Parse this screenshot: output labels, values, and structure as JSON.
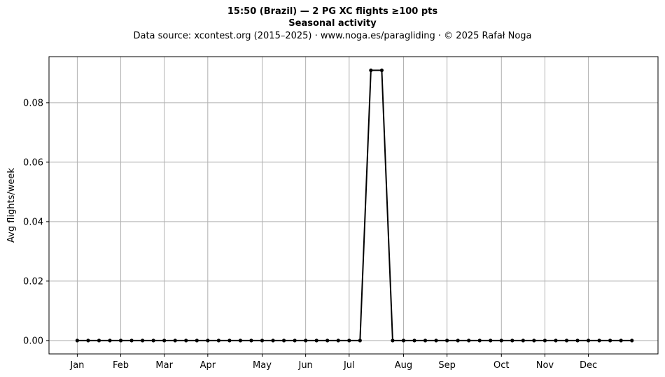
{
  "chart_data": {
    "type": "line",
    "title": "15:50 (Brazil)  —  2 PG XC flights ≥100 pts",
    "subtitle": "Seasonal activity",
    "source_line": "Data source: xcontest.org (2015–2025)  ·  www.noga.es/paragliding  ·  © 2025 Rafał Noga",
    "xlabel": "",
    "ylabel": "Avg flights/week",
    "ylim": [
      -0.0045,
      0.0955
    ],
    "xlim": [
      -2.6,
      53.4
    ],
    "grid": true,
    "line_color": "#000000",
    "grid_color": "#b0b0b0",
    "x_ticks": [
      {
        "label": "Jan",
        "pos": 0
      },
      {
        "label": "Feb",
        "pos": 4
      },
      {
        "label": "Mar",
        "pos": 8
      },
      {
        "label": "Apr",
        "pos": 12
      },
      {
        "label": "May",
        "pos": 17
      },
      {
        "label": "Jun",
        "pos": 21
      },
      {
        "label": "Jul",
        "pos": 25
      },
      {
        "label": "Aug",
        "pos": 30
      },
      {
        "label": "Sep",
        "pos": 34
      },
      {
        "label": "Oct",
        "pos": 39
      },
      {
        "label": "Nov",
        "pos": 43
      },
      {
        "label": "Dec",
        "pos": 47
      }
    ],
    "y_ticks": [
      {
        "label": "0.00",
        "value": 0.0
      },
      {
        "label": "0.02",
        "value": 0.02
      },
      {
        "label": "0.04",
        "value": 0.04
      },
      {
        "label": "0.06",
        "value": 0.06
      },
      {
        "label": "0.08",
        "value": 0.08
      }
    ],
    "series": [
      {
        "x": [
          0,
          1,
          2,
          3,
          4,
          5,
          6,
          7,
          8,
          9,
          10,
          11,
          12,
          13,
          14,
          15,
          16,
          17,
          18,
          19,
          20,
          21,
          22,
          23,
          24,
          25,
          26,
          27,
          28,
          29,
          30,
          31,
          32,
          33,
          34,
          35,
          36,
          37,
          38,
          39,
          40,
          41,
          42,
          43,
          44,
          45,
          46,
          47,
          48,
          49,
          50,
          51
        ],
        "values": [
          0,
          0,
          0,
          0,
          0,
          0,
          0,
          0,
          0,
          0,
          0,
          0,
          0,
          0,
          0,
          0,
          0,
          0,
          0,
          0,
          0,
          0,
          0,
          0,
          0,
          0,
          0,
          0.0909,
          0.0909,
          0,
          0,
          0,
          0,
          0,
          0,
          0,
          0,
          0,
          0,
          0,
          0,
          0,
          0,
          0,
          0,
          0,
          0,
          0,
          0,
          0,
          0,
          0
        ]
      }
    ]
  }
}
